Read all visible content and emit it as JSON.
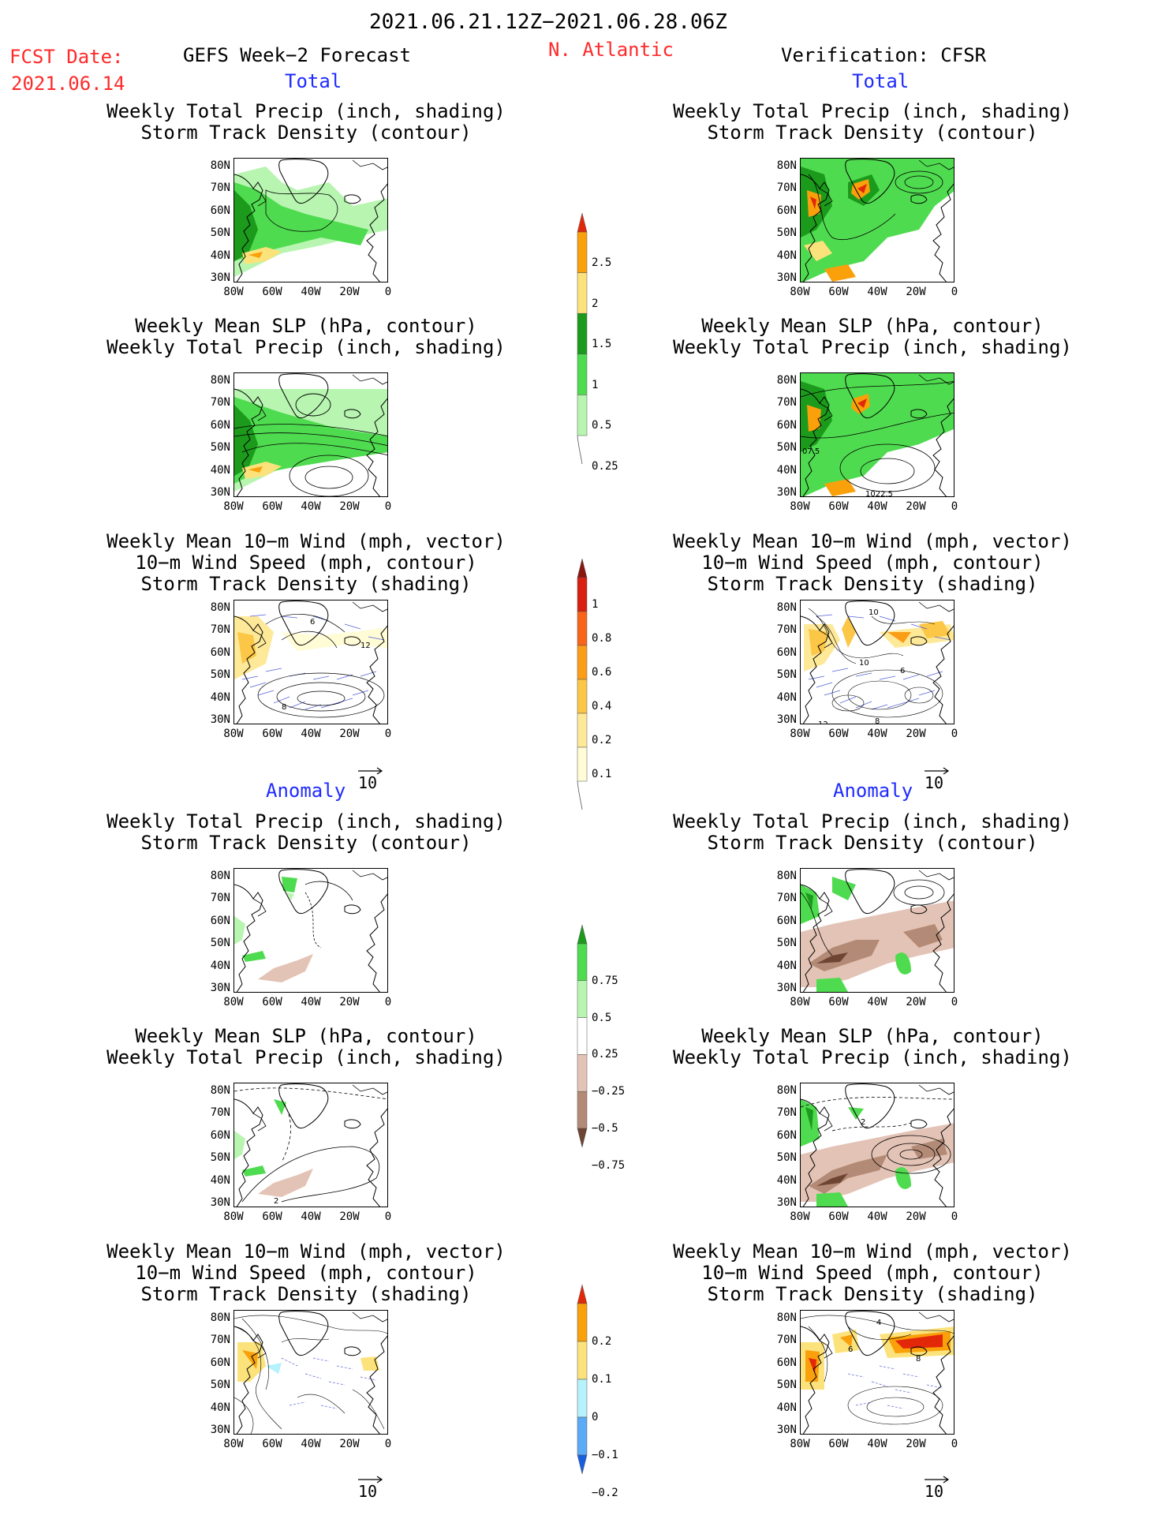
{
  "header": {
    "period": "2021.06.21.12Z−2021.06.28.06Z",
    "fcst_label": "FCST Date:",
    "fcst_date": "2021.06.14",
    "left_title": "GEFS Week−2 Forecast",
    "region": "N. Atlantic",
    "right_title": "Verification: CFSR"
  },
  "sections": {
    "total": "Total",
    "anomaly": "Anomaly"
  },
  "panel_titles": {
    "precip_track": [
      "Weekly Total Precip (inch, shading)",
      "Storm Track Density (contour)"
    ],
    "slp_precip": [
      "Weekly Mean SLP (hPa, contour)",
      "Weekly Total Precip (inch, shading)"
    ],
    "wind_track": [
      "Weekly Mean 10−m Wind (mph, vector)",
      "10−m Wind Speed (mph, contour)",
      "Storm Track Density (shading)"
    ]
  },
  "axes": {
    "lat_ticks": [
      "80N",
      "70N",
      "60N",
      "50N",
      "40N",
      "30N"
    ],
    "lon_ticks": [
      "80W",
      "60W",
      "40W",
      "20W",
      "0"
    ]
  },
  "vector_ref": "10",
  "map_annotations": {
    "slp_total_cfsr_a": "07.5",
    "slp_total_cfsr_b": "1022.5",
    "wind_total_gefs_a": "6",
    "wind_total_gefs_b": "12",
    "wind_total_gefs_c": "8",
    "wind_total_cfsr_a": "10",
    "wind_total_cfsr_b": "10",
    "wind_total_cfsr_c": "6",
    "wind_total_cfsr_d": "12",
    "wind_total_cfsr_e": "8",
    "slp_anom_gefs": "2",
    "slp_anom_cfsr": "2",
    "wind_anom_cfsr_a": "4",
    "wind_anom_cfsr_b": "6",
    "wind_anom_cfsr_c": "8"
  },
  "colorbars": {
    "precip_total": {
      "labels": [
        "2.5",
        "2",
        "1.5",
        "1",
        "0.5",
        "0.25"
      ],
      "colors": [
        "#e3280a",
        "#f9a00b",
        "#fce27a",
        "#1c9a1c",
        "#4fdb4f",
        "#b7f5b0"
      ]
    },
    "track_total": {
      "labels": [
        "1",
        "0.8",
        "0.6",
        "0.4",
        "0.2",
        "0.1"
      ],
      "colors": [
        "#8a1610",
        "#d81f10",
        "#f7641a",
        "#fc9d18",
        "#fcc646",
        "#fee998",
        "#fffcd6"
      ]
    },
    "precip_anom": {
      "labels": [
        "0.75",
        "0.5",
        "0.25",
        "−0.25",
        "−0.5",
        "−0.75"
      ],
      "colors": [
        "#1c9a1c",
        "#4fdb4f",
        "#b7f5b0",
        "#ffffff",
        "#e3c3b5",
        "#b38a76",
        "#6e4432"
      ]
    },
    "track_anom": {
      "labels": [
        "0.2",
        "0.1",
        "0",
        "−0.1",
        "−0.2"
      ],
      "colors": [
        "#e3280a",
        "#f9a00b",
        "#fce27a",
        "#b5f2fc",
        "#5aaaf5",
        "#1a5ee0"
      ]
    }
  }
}
